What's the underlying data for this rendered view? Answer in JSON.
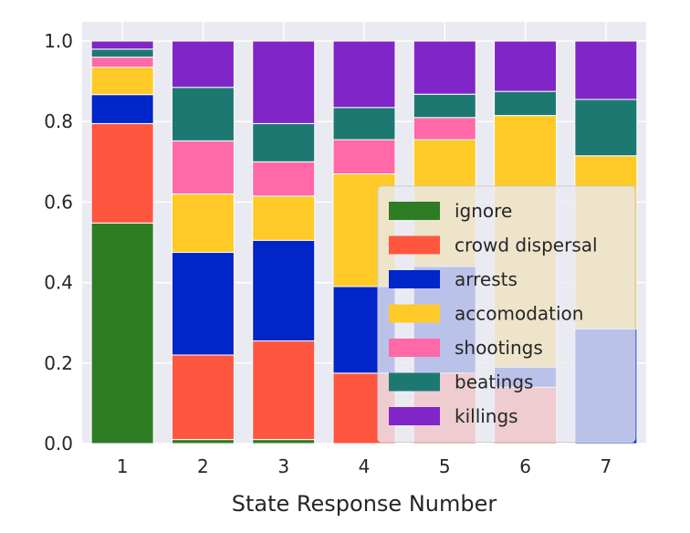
{
  "chart_data": {
    "type": "bar",
    "stacked": true,
    "normalized": true,
    "title": "",
    "xlabel": "State Response Number",
    "ylabel": "",
    "ylim": [
      0,
      1.0
    ],
    "yticks": [
      "0.0",
      "0.2",
      "0.4",
      "0.6",
      "0.8",
      "1.0"
    ],
    "categories": [
      "1",
      "2",
      "3",
      "4",
      "5",
      "6",
      "7"
    ],
    "grid": true,
    "background": "#EAEAF2",
    "legend": {
      "placement": "lower-right"
    },
    "series": [
      {
        "name": "ignore",
        "color": "#2E7D25",
        "values": [
          0.548,
          0.01,
          0.01,
          0.0,
          0.0,
          0.0,
          0.0
        ]
      },
      {
        "name": "crowd dispersal",
        "color": "#FF5640",
        "values": [
          0.247,
          0.21,
          0.245,
          0.175,
          0.175,
          0.14,
          0.0
        ]
      },
      {
        "name": "arrests",
        "color": "#0025C8",
        "values": [
          0.072,
          0.255,
          0.25,
          0.215,
          0.265,
          0.05,
          0.285
        ]
      },
      {
        "name": "accomodation",
        "color": "#FFCA28",
        "values": [
          0.068,
          0.145,
          0.11,
          0.28,
          0.315,
          0.625,
          0.43
        ]
      },
      {
        "name": "shootings",
        "color": "#FF69A8",
        "values": [
          0.025,
          0.132,
          0.085,
          0.085,
          0.055,
          0.0,
          0.0
        ]
      },
      {
        "name": "beatings",
        "color": "#1D7872",
        "values": [
          0.02,
          0.133,
          0.095,
          0.08,
          0.058,
          0.06,
          0.14
        ]
      },
      {
        "name": "killings",
        "color": "#8026C8",
        "values": [
          0.02,
          0.115,
          0.205,
          0.165,
          0.132,
          0.125,
          0.145
        ]
      }
    ]
  }
}
